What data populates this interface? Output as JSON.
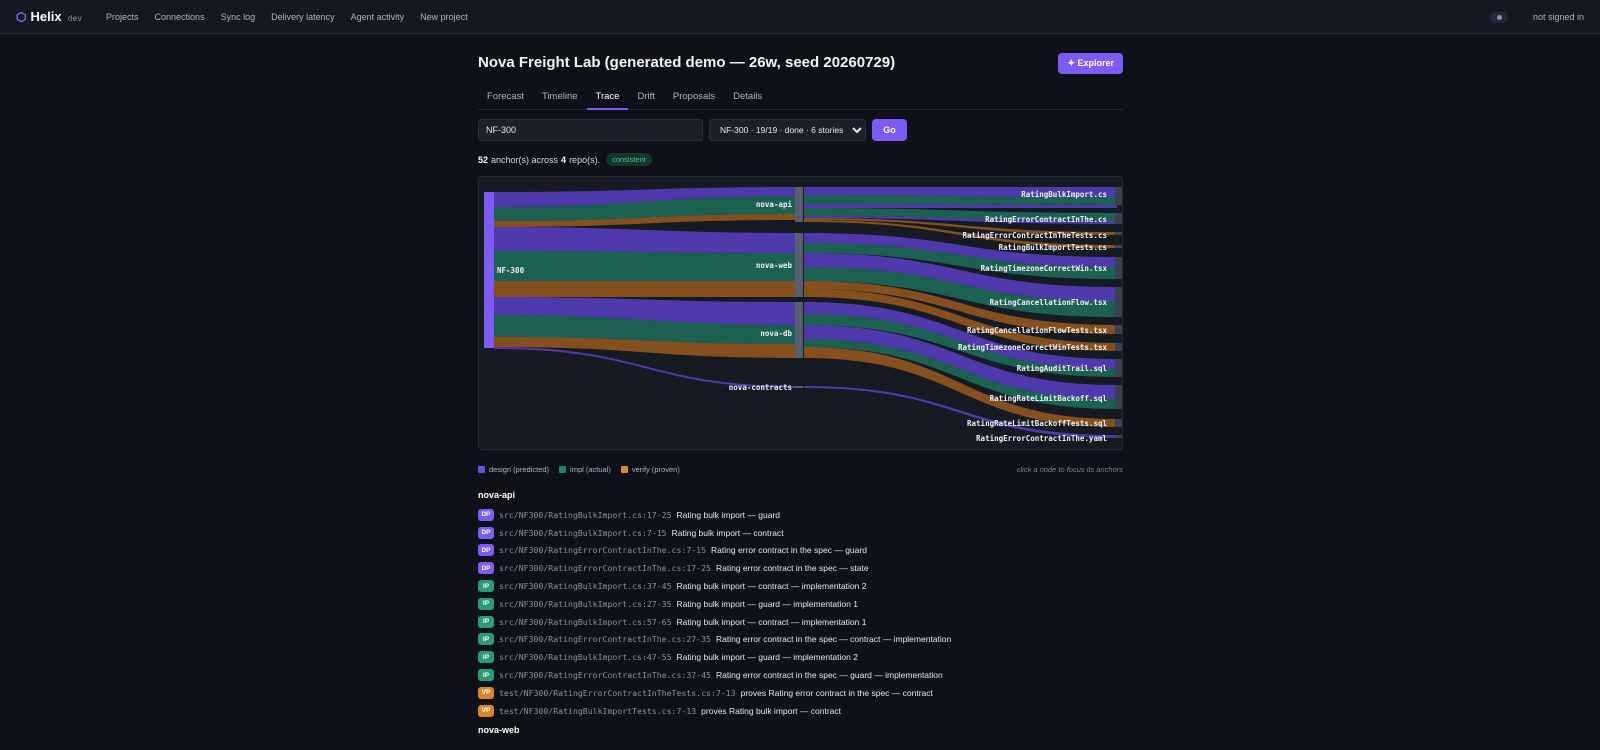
{
  "brand": {
    "logo": "⬡",
    "name": "Helix",
    "env": "dev"
  },
  "nav": {
    "links": [
      "Projects",
      "Connections",
      "Sync log",
      "Delivery latency",
      "Agent activity",
      "New project"
    ],
    "signin": "not signed in"
  },
  "page": {
    "title": "Nova Freight Lab (generated demo — 26w, seed 20260729)",
    "explorer_label": "✦ Explorer"
  },
  "tabs": [
    {
      "label": "Forecast",
      "active": false
    },
    {
      "label": "Timeline",
      "active": false
    },
    {
      "label": "Trace",
      "active": true
    },
    {
      "label": "Drift",
      "active": false
    },
    {
      "label": "Proposals",
      "active": false
    },
    {
      "label": "Details",
      "active": false
    }
  ],
  "controls": {
    "anchor_value": "NF-300",
    "story_selected": "NF-300 · 19/19 · done · 6 stories",
    "go_label": "Go"
  },
  "summary": {
    "anchors": "52",
    "mid1": "anchor(s) across",
    "repos": "4",
    "mid2": "repo(s).",
    "badge": "consistent"
  },
  "colors": {
    "design": "#6d4fd8",
    "impl": "#26806a",
    "verify": "#b36a22",
    "accent": "#7c5cf5"
  },
  "sankey": {
    "source": "NF-300",
    "repos": [
      "nova-api",
      "nova-web",
      "nova-db",
      "nova-contracts"
    ],
    "files": [
      "RatingBulkImport.cs",
      "RatingErrorContractInThe.cs",
      "RatingErrorContractInTheTests.cs",
      "RatingBulkImportTests.cs",
      "RatingTimezoneCorrectWin.tsx",
      "RatingCancellationFlow.tsx",
      "RatingCancellationFlowTests.tsx",
      "RatingTimezoneCorrectWinTests.tsx",
      "RatingAuditTrail.sql",
      "RatingRateLimitBackoff.sql",
      "RatingRateLimitBackoffTests.sql",
      "RatingErrorContractInThe.yaml"
    ]
  },
  "legend": {
    "design": "design (predicted)",
    "impl": "impl (actual)",
    "verify": "verify (proven)",
    "hint": "click a node to focus its anchors"
  },
  "groups": [
    {
      "repo": "nova-api",
      "anchors": [
        {
          "kind": "DP",
          "path": "src/NF300/RatingBulkImport.cs:17-25",
          "desc": "Rating bulk import — guard"
        },
        {
          "kind": "DP",
          "path": "src/NF300/RatingBulkImport.cs:7-15",
          "desc": "Rating bulk import — contract"
        },
        {
          "kind": "DP",
          "path": "src/NF300/RatingErrorContractInThe.cs:7-15",
          "desc": "Rating error contract in the spec — guard"
        },
        {
          "kind": "DP",
          "path": "src/NF300/RatingErrorContractInThe.cs:17-25",
          "desc": "Rating error contract in the spec — state"
        },
        {
          "kind": "IP",
          "path": "src/NF300/RatingBulkImport.cs:37-45",
          "desc": "Rating bulk import — contract — implementation 2"
        },
        {
          "kind": "IP",
          "path": "src/NF300/RatingBulkImport.cs:27-35",
          "desc": "Rating bulk import — guard — implementation 1"
        },
        {
          "kind": "IP",
          "path": "src/NF300/RatingBulkImport.cs:57-65",
          "desc": "Rating bulk import — contract — implementation 1"
        },
        {
          "kind": "IP",
          "path": "src/NF300/RatingErrorContractInThe.cs:27-35",
          "desc": "Rating error contract in the spec — contract — implementation"
        },
        {
          "kind": "IP",
          "path": "src/NF300/RatingBulkImport.cs:47-55",
          "desc": "Rating bulk import — guard — implementation 2"
        },
        {
          "kind": "IP",
          "path": "src/NF300/RatingErrorContractInThe.cs:37-45",
          "desc": "Rating error contract in the spec — guard — implementation"
        },
        {
          "kind": "VP",
          "path": "test/NF300/RatingErrorContractInTheTests.cs:7-13",
          "desc": "proves Rating error contract in the spec — contract"
        },
        {
          "kind": "VP",
          "path": "test/NF300/RatingBulkImportTests.cs:7-13",
          "desc": "proves Rating bulk import — contract"
        }
      ]
    },
    {
      "repo": "nova-web",
      "anchors": []
    }
  ]
}
